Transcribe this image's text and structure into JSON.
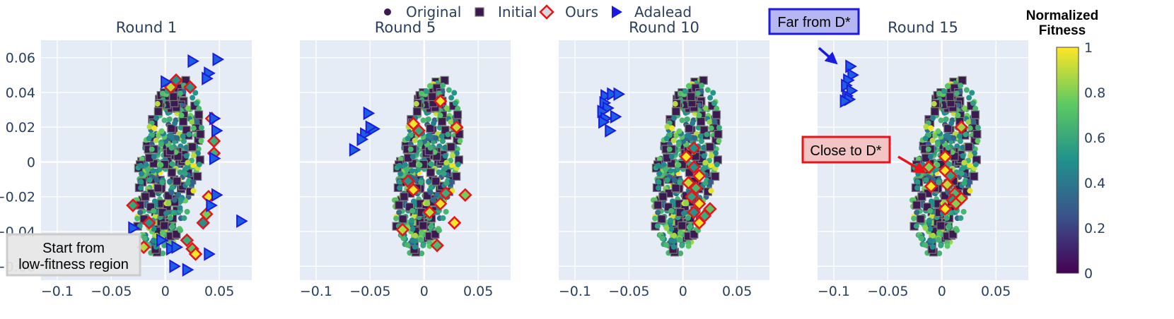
{
  "legend": [
    {
      "label": "Original",
      "symbol": "circle",
      "color": "#3b1a4f"
    },
    {
      "label": "Initial",
      "symbol": "square",
      "color": "#3b1a4f"
    },
    {
      "label": "Ours",
      "symbol": "diamond",
      "color": "#e8131b"
    },
    {
      "label": "Adalead",
      "symbol": "triangle-right",
      "color": "#1a1ae0"
    }
  ],
  "colorbar": {
    "title_line1": "Normalized",
    "title_line2": "Fitness",
    "ticks": [
      "0",
      "0.2",
      "0.4",
      "0.6",
      "0.8",
      "1"
    ],
    "tick_values": [
      0,
      0.2,
      0.4,
      0.6,
      0.8,
      1
    ],
    "colorscale": [
      "#440154",
      "#3b528b",
      "#21918c",
      "#5ec962",
      "#fde725"
    ]
  },
  "annotations": {
    "start": {
      "line1": "Start from",
      "line2": "low-fitness region"
    },
    "far": {
      "text": "Far from D*"
    },
    "close": {
      "text": "Close to D*"
    }
  },
  "chart_data": [
    {
      "type": "scatter",
      "title": "Round 1",
      "xlim": [
        -0.115,
        0.08
      ],
      "ylim": [
        -0.068,
        0.07
      ],
      "xticks": [
        -0.1,
        -0.05,
        0,
        0.05
      ],
      "xtick_labels": [
        "−0.1",
        "−0.05",
        "0",
        "0.05"
      ],
      "yticks": [
        -0.06,
        -0.04,
        -0.02,
        0,
        0.02,
        0.04,
        0.06
      ],
      "ytick_labels": [
        "−0.06",
        "−0.04",
        "−0.02",
        "0",
        "0.02",
        "0.04",
        "0.06"
      ],
      "grid": true,
      "series": [
        {
          "name": "Ours",
          "points": [
            [
              0.005,
              0.043
            ],
            [
              0.01,
              0.047
            ],
            [
              0.023,
              0.043
            ],
            [
              0.043,
              0.025
            ],
            [
              0.045,
              0.012
            ],
            [
              0.045,
              0.005
            ],
            [
              0.04,
              -0.02
            ],
            [
              0.038,
              -0.03
            ],
            [
              0.035,
              -0.035
            ],
            [
              -0.03,
              -0.025
            ],
            [
              -0.015,
              -0.035
            ],
            [
              0.02,
              -0.045
            ],
            [
              0.025,
              -0.05
            ],
            [
              0.028,
              -0.053
            ],
            [
              -0.02,
              -0.049
            ]
          ]
        },
        {
          "name": "Adalead",
          "points": [
            [
              0.025,
              0.058
            ],
            [
              0.048,
              0.059
            ],
            [
              0.04,
              0.051
            ],
            [
              0.038,
              0.048
            ],
            [
              0.0,
              0.046
            ],
            [
              0.045,
              0.025
            ],
            [
              0.047,
              0.018
            ],
            [
              0.045,
              0.002
            ],
            [
              0.047,
              -0.019
            ],
            [
              0.042,
              -0.025
            ],
            [
              0.07,
              -0.034
            ],
            [
              -0.03,
              -0.038
            ],
            [
              -0.004,
              -0.045
            ],
            [
              0.005,
              -0.05
            ],
            [
              0.01,
              -0.049
            ],
            [
              0.04,
              -0.053
            ],
            [
              0.008,
              -0.06
            ],
            [
              0.02,
              -0.062
            ]
          ]
        }
      ]
    },
    {
      "type": "scatter",
      "title": "Round 5",
      "xlim": [
        -0.115,
        0.08
      ],
      "ylim": [
        -0.068,
        0.07
      ],
      "xticks": [
        -0.1,
        -0.05,
        0,
        0.05
      ],
      "xtick_labels": [
        "−0.1",
        "−0.05",
        "0",
        "0.05"
      ],
      "grid": true,
      "series": [
        {
          "name": "Ours",
          "points": [
            [
              0.015,
              0.035
            ],
            [
              -0.01,
              0.022
            ],
            [
              -0.005,
              0.018
            ],
            [
              0.03,
              0.02
            ],
            [
              -0.015,
              -0.011
            ],
            [
              -0.01,
              -0.016
            ],
            [
              0.02,
              -0.018
            ],
            [
              0.015,
              -0.024
            ],
            [
              0.038,
              -0.019
            ],
            [
              0.005,
              -0.029
            ],
            [
              -0.02,
              -0.039
            ],
            [
              0.028,
              -0.035
            ],
            [
              0.012,
              -0.048
            ]
          ]
        },
        {
          "name": "Adalead",
          "points": [
            [
              -0.052,
              0.028
            ],
            [
              -0.047,
              0.019
            ],
            [
              -0.055,
              0.016
            ],
            [
              -0.058,
              0.013
            ],
            [
              -0.065,
              0.007
            ],
            [
              -0.05,
              0.02
            ]
          ]
        }
      ]
    },
    {
      "type": "scatter",
      "title": "Round 10",
      "xlim": [
        -0.115,
        0.08
      ],
      "ylim": [
        -0.068,
        0.07
      ],
      "xticks": [
        -0.1,
        -0.05,
        0,
        0.05
      ],
      "xtick_labels": [
        "−0.1",
        "−0.05",
        "0",
        "0.05"
      ],
      "grid": true,
      "series": [
        {
          "name": "Ours",
          "points": [
            [
              0.01,
              0.008
            ],
            [
              0.003,
              0.003
            ],
            [
              0.01,
              -0.003
            ],
            [
              0.015,
              -0.008
            ],
            [
              0.005,
              -0.012
            ],
            [
              0.012,
              -0.015
            ],
            [
              0.008,
              -0.02
            ],
            [
              0.015,
              -0.024
            ],
            [
              0.01,
              -0.029
            ],
            [
              0.02,
              -0.031
            ],
            [
              0.015,
              -0.035
            ],
            [
              0.025,
              -0.027
            ]
          ]
        },
        {
          "name": "Adalead",
          "points": [
            [
              -0.072,
              0.038
            ],
            [
              -0.066,
              0.039
            ],
            [
              -0.06,
              0.039
            ],
            [
              -0.073,
              0.034
            ],
            [
              -0.07,
              0.031
            ],
            [
              -0.075,
              0.029
            ],
            [
              -0.072,
              0.025
            ],
            [
              -0.063,
              0.026
            ],
            [
              -0.074,
              0.023
            ],
            [
              -0.068,
              0.018
            ]
          ]
        }
      ]
    },
    {
      "type": "scatter",
      "title": "Round 15",
      "xlim": [
        -0.115,
        0.08
      ],
      "ylim": [
        -0.068,
        0.07
      ],
      "xticks": [
        -0.1,
        -0.05,
        0,
        0.05
      ],
      "xtick_labels": [
        "−0.1",
        "−0.05",
        "0",
        "0.05"
      ],
      "grid": true,
      "series": [
        {
          "name": "Ours",
          "points": [
            [
              0.018,
              0.02
            ],
            [
              0.003,
              0.003
            ],
            [
              -0.012,
              -0.003
            ],
            [
              0.003,
              -0.005
            ],
            [
              0.008,
              -0.008
            ],
            [
              0.005,
              -0.013
            ],
            [
              -0.01,
              -0.014
            ],
            [
              0.012,
              -0.018
            ],
            [
              0.01,
              -0.022
            ],
            [
              0.018,
              -0.021
            ],
            [
              0.013,
              -0.024
            ],
            [
              0.003,
              -0.027
            ]
          ]
        },
        {
          "name": "Adalead",
          "points": [
            [
              -0.085,
              0.055
            ],
            [
              -0.083,
              0.05
            ],
            [
              -0.087,
              0.047
            ],
            [
              -0.089,
              0.044
            ],
            [
              -0.084,
              0.041
            ],
            [
              -0.088,
              0.038
            ],
            [
              -0.086,
              0.036
            ],
            [
              -0.09,
              0.035
            ]
          ]
        }
      ]
    }
  ]
}
